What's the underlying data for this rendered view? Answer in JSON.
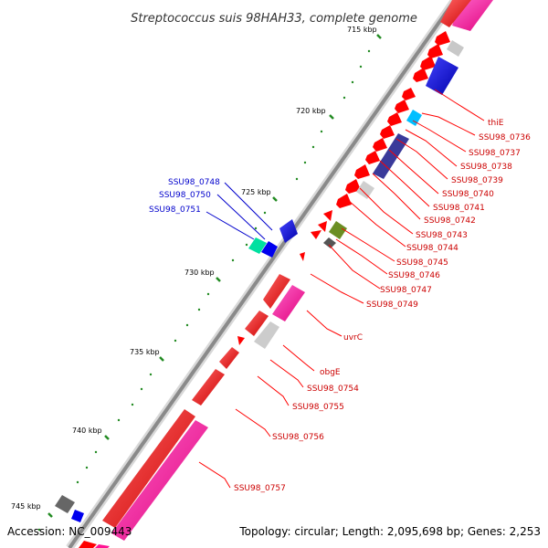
{
  "title": "Streptococcus suis 98HAH33, complete genome",
  "footer": {
    "accession": "Accession: NC_009443",
    "topology": "Topology: circular; Length: 2,095,698 bp; Genes: 2,253"
  },
  "ticks": [
    "715 kbp",
    "720 kbp",
    "725 kbp",
    "730 kbp",
    "735 kbp",
    "740 kbp",
    "745 kbp"
  ],
  "colors": {
    "red": "#ff0000",
    "magenta": "#ff1493",
    "blue": "#0000ee",
    "gray": "#c0c0c0",
    "darkgray": "#555555",
    "cyan": "#00bfff",
    "navy": "#3a3a9a",
    "olive": "#6b8e23",
    "teal": "#00e0a0",
    "tick": "#228b22",
    "backbone": "#888888"
  },
  "labels_right": [
    "thiE",
    "SSU98_0736",
    "SSU98_0737",
    "SSU98_0738",
    "SSU98_0739",
    "SSU98_0740",
    "SSU98_0741",
    "SSU98_0742",
    "SSU98_0743",
    "SSU98_0744",
    "SSU98_0745",
    "SSU98_0746",
    "SSU98_0747",
    "SSU98_0749",
    "uvrC",
    "obgE",
    "SSU98_0754",
    "SSU98_0755",
    "SSU98_0756",
    "SSU98_0757"
  ],
  "labels_left": [
    "SSU98_0748",
    "SSU98_0750",
    "SSU98_0751"
  ]
}
